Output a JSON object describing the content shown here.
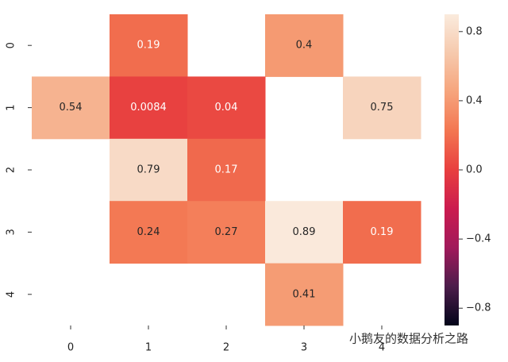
{
  "chart_data": {
    "type": "heatmap",
    "x_categories": [
      "0",
      "1",
      "2",
      "3",
      "4"
    ],
    "y_categories": [
      "0",
      "1",
      "2",
      "3",
      "4"
    ],
    "z": [
      [
        null,
        0.19,
        null,
        0.4,
        null
      ],
      [
        0.54,
        0.0084,
        0.04,
        null,
        0.75
      ],
      [
        null,
        0.79,
        0.17,
        null,
        null
      ],
      [
        null,
        0.24,
        0.27,
        0.89,
        0.19
      ],
      [
        null,
        null,
        null,
        0.41,
        null
      ]
    ],
    "zlim": [
      -0.9,
      0.9
    ],
    "zticks": [
      {
        "value": -0.8,
        "label": "−0.8"
      },
      {
        "value": -0.4,
        "label": "−0.4"
      },
      {
        "value": 0,
        "label": "0.0"
      },
      0.4,
      0.8
    ],
    "colormap": [
      "#03051a",
      "#4c1d4b",
      "#a11a5b",
      "#cb1b4f",
      "#e83f3f",
      "#f37651",
      "#f6a47c",
      "#f6c9ad",
      "#faebdd"
    ],
    "watermark": "小鹅友的数据分析之路"
  }
}
